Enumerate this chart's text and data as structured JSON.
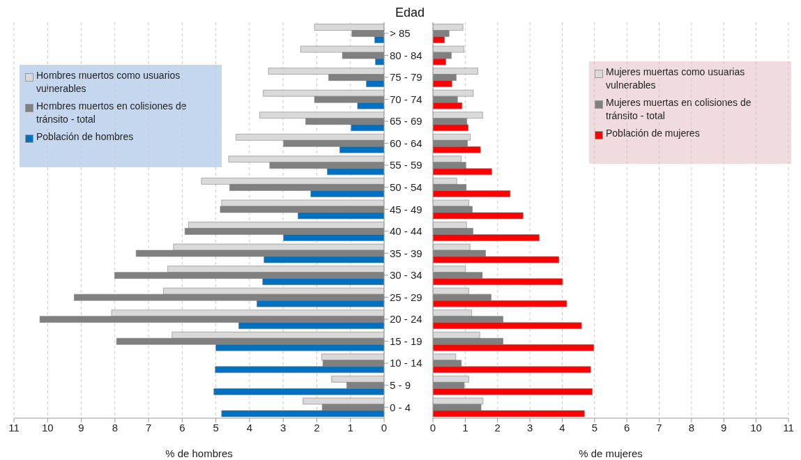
{
  "chart_data": [
    {
      "type": "bar",
      "orientation": "horizontal",
      "ylabel": "Edad",
      "xlabel": "% de hombres",
      "categories": [
        "> 85",
        "80 - 84",
        "75 - 79",
        "70 - 74",
        "65 - 69",
        "60 - 64",
        "55 - 59",
        "50 - 54",
        "45 - 49",
        "40 - 44",
        "35 - 39",
        "30 - 34",
        "25 - 29",
        "20 - 24",
        "15 - 19",
        "10 - 14",
        "5 - 9",
        "0 - 4"
      ],
      "series": [
        {
          "name": "Hombres muertos como usuarios vulnerables",
          "color": "#d9d9d9",
          "values": [
            2.07,
            2.48,
            3.44,
            3.59,
            3.7,
            4.4,
            4.62,
            5.43,
            4.83,
            5.81,
            6.26,
            6.43,
            6.56,
            8.1,
            6.3,
            1.86,
            1.56,
            2.41
          ]
        },
        {
          "name": "Hombres muertos en colisiones de tránsito - total",
          "color": "#808080",
          "values": [
            0.96,
            1.24,
            1.65,
            2.07,
            2.33,
            2.99,
            3.4,
            4.59,
            4.87,
            5.92,
            7.37,
            8.01,
            9.21,
            10.23,
            7.95,
            1.82,
            1.11,
            1.84
          ]
        },
        {
          "name": "Población de hombres",
          "color": "#0070c0",
          "values": [
            0.28,
            0.26,
            0.53,
            0.79,
            0.98,
            1.32,
            1.69,
            2.18,
            2.56,
            2.99,
            3.57,
            3.61,
            3.78,
            4.32,
            5.0,
            5.02,
            5.06,
            4.83
          ]
        }
      ],
      "xlim": [
        11,
        0
      ],
      "xticks": [
        11,
        10,
        9,
        8,
        7,
        6,
        5,
        4,
        3,
        2,
        1,
        0
      ],
      "grid": "x",
      "legend": "top left"
    },
    {
      "type": "bar",
      "orientation": "horizontal",
      "xlabel": "% de mujeres",
      "series": [
        {
          "name": "Mujeres muertas como usuarias vulnerables",
          "color": "#d9d9d9",
          "values": [
            0.93,
            0.96,
            1.39,
            1.25,
            1.54,
            1.16,
            0.88,
            0.74,
            1.11,
            1.04,
            1.15,
            1.01,
            1.11,
            1.2,
            1.45,
            0.71,
            1.11,
            1.55
          ]
        },
        {
          "name": "Mujeres muertas en colisiones de tránsito - total",
          "color": "#808080",
          "values": [
            0.5,
            0.57,
            0.72,
            0.76,
            1.05,
            1.07,
            1.02,
            1.03,
            1.22,
            1.24,
            1.63,
            1.53,
            1.8,
            2.17,
            2.17,
            0.88,
            0.97,
            1.49
          ]
        },
        {
          "name": "Población de mujeres",
          "color": "#ff0000",
          "values": [
            0.36,
            0.4,
            0.59,
            0.9,
            1.09,
            1.47,
            1.82,
            2.39,
            2.79,
            3.29,
            3.9,
            4.01,
            4.14,
            4.6,
            4.98,
            4.88,
            4.93,
            4.69
          ]
        }
      ],
      "xlim": [
        0,
        11
      ],
      "xticks": [
        0,
        1,
        2,
        3,
        4,
        5,
        6,
        7,
        8,
        9,
        10,
        11
      ],
      "grid": "x",
      "legend": "top right",
      "tick_labels": "x"
    }
  ]
}
